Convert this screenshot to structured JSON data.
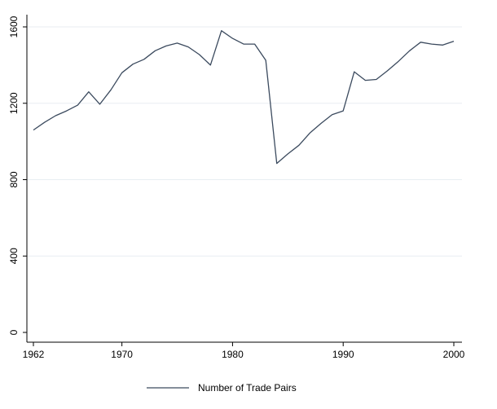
{
  "chart_data": {
    "type": "line",
    "title": "",
    "xlabel": "",
    "ylabel": "",
    "xlim": [
      1962,
      2000
    ],
    "ylim": [
      0,
      1600
    ],
    "x_ticks": [
      1962,
      1970,
      1980,
      1990,
      2000
    ],
    "y_ticks": [
      0,
      400,
      800,
      1200,
      1600
    ],
    "grid": true,
    "legend_position": "bottom",
    "colors": {
      "line": "#3b4a5e",
      "grid": "#e8eef2",
      "axis": "#000000"
    },
    "series": [
      {
        "name": "Number of Trade Pairs",
        "x": [
          1962,
          1963,
          1964,
          1965,
          1966,
          1967,
          1968,
          1969,
          1970,
          1971,
          1972,
          1973,
          1974,
          1975,
          1976,
          1977,
          1978,
          1979,
          1980,
          1981,
          1982,
          1983,
          1984,
          1985,
          1986,
          1987,
          1988,
          1989,
          1990,
          1991,
          1992,
          1993,
          1994,
          1995,
          1996,
          1997,
          1998,
          1999,
          2000
        ],
        "values": [
          1060,
          1100,
          1135,
          1160,
          1190,
          1260,
          1195,
          1270,
          1360,
          1405,
          1430,
          1475,
          1500,
          1515,
          1495,
          1455,
          1400,
          1580,
          1540,
          1510,
          1510,
          1425,
          885,
          935,
          980,
          1045,
          1095,
          1140,
          1160,
          1365,
          1320,
          1325,
          1370,
          1420,
          1475,
          1520,
          1510,
          1505,
          1525
        ]
      }
    ]
  }
}
